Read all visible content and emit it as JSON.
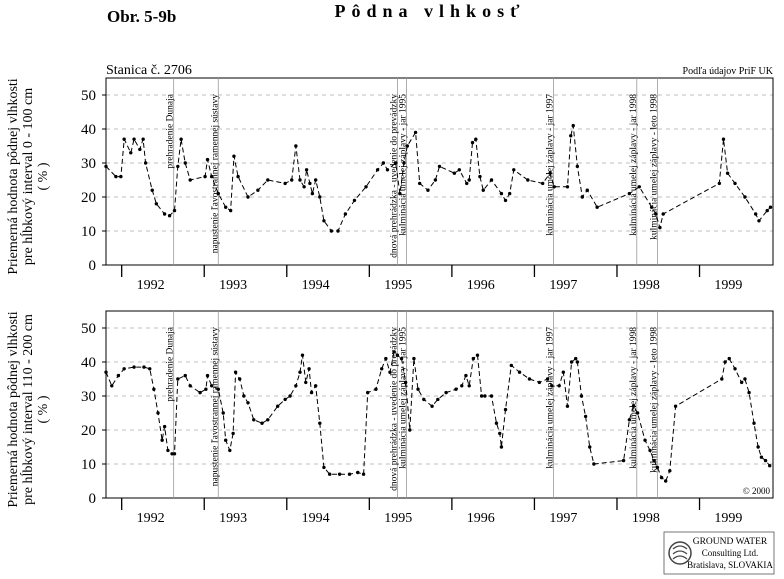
{
  "header": {
    "figure_label": "Obr. 5-9b",
    "title": "Pôdna vlhkosť",
    "logo": [
      "GROUND WATER",
      "Consulting Ltd.",
      "Bratislava, SLOVAKIA"
    ]
  },
  "chart_data": [
    {
      "type": "line",
      "subtitle": "Stanica č. 2706",
      "note": "Podľa údajov PriF UK",
      "ylabel": [
        "Priemerná hodnota pôdnej vlhkosti",
        "pre hĺbkový interval 0 - 100 cm",
        "( % )"
      ],
      "xlim": [
        1991.81,
        1999.89
      ],
      "ylim": [
        0,
        55
      ],
      "yticks": [
        0,
        10,
        20,
        30,
        40,
        50
      ],
      "grid": true,
      "xticks": [
        {
          "value": 1992,
          "label": "1992"
        },
        {
          "value": 1993,
          "label": "1993"
        },
        {
          "value": 1994,
          "label": "1994"
        },
        {
          "value": 1995,
          "label": "1995"
        },
        {
          "value": 1996,
          "label": "1996"
        },
        {
          "value": 1997,
          "label": "1997"
        },
        {
          "value": 1998,
          "label": "1998"
        },
        {
          "value": 1999,
          "label": "1999"
        }
      ],
      "annotations": [
        {
          "x": 1992.63,
          "text": "prehradenie Dunaja"
        },
        {
          "x": 1993.17,
          "text": "napustenie ľavostrannej ramennej sústavy"
        },
        {
          "x": 1995.34,
          "text": "dnová prehrádzka - uvedenie do prevádzky"
        },
        {
          "x": 1995.45,
          "text": "kulminácia umelej záplavy - jar 1995"
        },
        {
          "x": 1997.23,
          "text": "kulminácia umelej záplavy - jar 1997"
        },
        {
          "x": 1998.24,
          "text": "kulminácia umelej záplavy - jar 1998"
        },
        {
          "x": 1998.49,
          "text": "kulminácia umelej záplavy - leto 1998"
        }
      ],
      "x": [
        1991.81,
        1991.93,
        1991.99,
        1992.03,
        1992.11,
        1992.15,
        1992.22,
        1992.26,
        1992.29,
        1992.37,
        1992.42,
        1992.52,
        1992.58,
        1992.64,
        1992.68,
        1992.72,
        1992.77,
        1992.83,
        1993.01,
        1993.04,
        1993.09,
        1993.17,
        1993.26,
        1993.32,
        1993.36,
        1993.41,
        1993.53,
        1993.65,
        1993.77,
        1993.98,
        1994.06,
        1994.11,
        1994.16,
        1994.21,
        1994.24,
        1994.28,
        1994.31,
        1994.35,
        1994.4,
        1994.45,
        1994.54,
        1994.62,
        1994.71,
        1994.82,
        1994.96,
        1995.1,
        1995.17,
        1995.22,
        1995.32,
        1995.37,
        1995.42,
        1995.46,
        1995.56,
        1995.61,
        1995.71,
        1995.8,
        1995.85,
        1996.03,
        1996.09,
        1996.18,
        1996.21,
        1996.25,
        1996.29,
        1996.34,
        1996.38,
        1996.48,
        1996.6,
        1996.65,
        1996.7,
        1996.75,
        1996.92,
        1997.1,
        1997.19,
        1997.24,
        1997.4,
        1997.44,
        1997.47,
        1997.52,
        1997.58,
        1997.64,
        1997.76,
        1998.15,
        1998.27,
        1998.42,
        1998.47,
        1998.52,
        1998.56,
        1999.24,
        1999.29,
        1999.34,
        1999.43,
        1999.55,
        1999.68,
        1999.72,
        1999.82,
        1999.86
      ],
      "series": [
        {
          "color": "#000000",
          "values": [
            29,
            26,
            26,
            37,
            33,
            37,
            34,
            37,
            30,
            22,
            18,
            15,
            14.5,
            16,
            29,
            37,
            30,
            25,
            26,
            31,
            26,
            21,
            17,
            16,
            32,
            26,
            20,
            22,
            25,
            24,
            25,
            35,
            25,
            23,
            28,
            24,
            21,
            25,
            20,
            13,
            10,
            10,
            15,
            19,
            23,
            28,
            30,
            28,
            30,
            21,
            30,
            35,
            39,
            24,
            22,
            25,
            29,
            27,
            28,
            24,
            25,
            36,
            37,
            26,
            22,
            25,
            21,
            19,
            21,
            28,
            25,
            24,
            27,
            23,
            23,
            38,
            41,
            29,
            20,
            22,
            17,
            21,
            23,
            17,
            15,
            11,
            15,
            24,
            37,
            27,
            24,
            20,
            15,
            13,
            16,
            17
          ]
        }
      ]
    },
    {
      "type": "line",
      "note": "© 2000",
      "ylabel": [
        "Priemerná hodnota pôdnej vlhkosti",
        "pre hĺbkový interval 110 - 200 cm",
        "( % )"
      ],
      "xlim": [
        1991.81,
        1999.89
      ],
      "ylim": [
        0,
        55
      ],
      "yticks": [
        0,
        10,
        20,
        30,
        40,
        50
      ],
      "grid": true,
      "xticks": [
        {
          "value": 1992,
          "label": "1992"
        },
        {
          "value": 1993,
          "label": "1993"
        },
        {
          "value": 1994,
          "label": "1994"
        },
        {
          "value": 1995,
          "label": "1995"
        },
        {
          "value": 1996,
          "label": "1996"
        },
        {
          "value": 1997,
          "label": "1997"
        },
        {
          "value": 1998,
          "label": "1998"
        },
        {
          "value": 1999,
          "label": "1999"
        }
      ],
      "annotations": [
        {
          "x": 1992.63,
          "text": "prehradenie Dunaja"
        },
        {
          "x": 1993.17,
          "text": "napustenie ľavostrannej ramennej sústavy"
        },
        {
          "x": 1995.34,
          "text": "dnová prehrádzka - uvedenie do prevádzky"
        },
        {
          "x": 1995.45,
          "text": "kulminácia umelej záplavy - jar 1995"
        },
        {
          "x": 1997.23,
          "text": "kulminácia umelej záplavy - jar 1997"
        },
        {
          "x": 1998.24,
          "text": "kulminácia umelej záplavy - jar 1998"
        },
        {
          "x": 1998.49,
          "text": "kulminácia umelej záplavy - leto 1998"
        }
      ],
      "x": [
        1991.81,
        1991.88,
        1991.96,
        1992.03,
        1992.15,
        1992.27,
        1992.34,
        1992.39,
        1992.44,
        1992.49,
        1992.52,
        1992.56,
        1992.61,
        1992.64,
        1992.68,
        1992.77,
        1992.83,
        1992.95,
        1993.02,
        1993.04,
        1993.09,
        1993.17,
        1993.23,
        1993.26,
        1993.31,
        1993.35,
        1993.38,
        1993.43,
        1993.48,
        1993.53,
        1993.6,
        1993.7,
        1993.77,
        1993.89,
        1993.98,
        1994.04,
        1994.11,
        1994.16,
        1994.19,
        1994.23,
        1994.27,
        1994.3,
        1994.35,
        1994.4,
        1994.45,
        1994.52,
        1994.64,
        1994.76,
        1994.86,
        1994.93,
        1994.98,
        1995.08,
        1995.15,
        1995.2,
        1995.25,
        1995.3,
        1995.34,
        1995.39,
        1995.44,
        1995.49,
        1995.54,
        1995.59,
        1995.66,
        1995.76,
        1995.83,
        1995.93,
        1996.05,
        1996.12,
        1996.17,
        1996.21,
        1996.26,
        1996.31,
        1996.36,
        1996.4,
        1996.48,
        1996.54,
        1996.58,
        1996.6,
        1996.65,
        1996.72,
        1996.82,
        1996.94,
        1997.06,
        1997.16,
        1997.21,
        1997.3,
        1997.35,
        1997.4,
        1997.45,
        1997.5,
        1997.52,
        1997.57,
        1997.62,
        1997.67,
        1997.72,
        1998.08,
        1998.15,
        1998.2,
        1998.25,
        1998.34,
        1998.4,
        1998.45,
        1998.49,
        1998.54,
        1998.59,
        1998.64,
        1998.71,
        1999.27,
        1999.31,
        1999.36,
        1999.43,
        1999.51,
        1999.55,
        1999.6,
        1999.66,
        1999.71,
        1999.75,
        1999.8,
        1999.85
      ],
      "series": [
        {
          "color": "#000000",
          "values": [
            37,
            33,
            36,
            38,
            38.5,
            38.5,
            38,
            32,
            25,
            17,
            21,
            14,
            13,
            13,
            35,
            36,
            33,
            31,
            32,
            36,
            33,
            32,
            25,
            17,
            14,
            19,
            37,
            35,
            30,
            28,
            23,
            22,
            23,
            27,
            29,
            30,
            33,
            37,
            42,
            34,
            38,
            31,
            33,
            22,
            9,
            7,
            7,
            7,
            7.5,
            7,
            31,
            32,
            38,
            41,
            37,
            43,
            42,
            41,
            34,
            20,
            41,
            32,
            29,
            27,
            29,
            31,
            32,
            33,
            36,
            33,
            41,
            42,
            30,
            30,
            30,
            22,
            19,
            15,
            26,
            39,
            37,
            35,
            34,
            35,
            33,
            33,
            37,
            27,
            40,
            41,
            40,
            30,
            24,
            15,
            10,
            11,
            23,
            27,
            25,
            17,
            14,
            11,
            9,
            6,
            5,
            8,
            27,
            35,
            40,
            41,
            38,
            34,
            35,
            31,
            22,
            15,
            12,
            11,
            9.5
          ]
        }
      ]
    }
  ]
}
